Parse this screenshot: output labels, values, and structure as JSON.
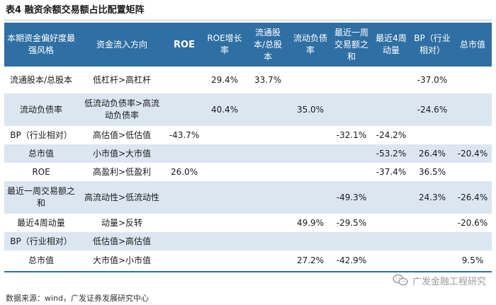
{
  "title": "表4 融资余额交易额占比配置矩阵",
  "columns": [
    "本期资金偏好度最强风格",
    "资金流入方向",
    "ROE",
    "ROE增长率",
    "流通股本/总股本",
    "流动负债率",
    "最近一周交易额之和",
    "最近4周动量",
    "BP（行业相对）",
    "总市值"
  ],
  "rows": [
    {
      "style": "流通股本/总股本",
      "flow": "低杠杆>高杠杆",
      "cells": [
        "",
        "29.4%",
        "33.7%",
        "",
        "",
        "",
        "-37.0%",
        ""
      ]
    },
    {
      "style": "流动负债率",
      "flow": "低流动负债率>高流动负债率",
      "cells": [
        "",
        "40.4%",
        "",
        "35.0%",
        "",
        "",
        "-24.6%",
        ""
      ]
    },
    {
      "style": "BP（行业相对）",
      "flow": "高估值>低估值",
      "cells": [
        "-43.7%",
        "",
        "",
        "",
        "-32.1%",
        "-24.2%",
        "",
        ""
      ]
    },
    {
      "style": "总市值",
      "flow": "小市值>大市值",
      "cells": [
        "",
        "",
        "",
        "",
        "",
        "-53.2%",
        "26.4%",
        "-20.4%"
      ]
    },
    {
      "style": "ROE",
      "flow": "高盈利>低盈利",
      "cells": [
        "26.0%",
        "",
        "",
        "",
        "",
        "-37.4%",
        "36.5%",
        ""
      ]
    },
    {
      "style": "最近一周交易额之和",
      "flow": "高流动性>低流动性",
      "cells": [
        "",
        "",
        "",
        "",
        "-49.3%",
        "",
        "24.3%",
        "-26.4%"
      ]
    },
    {
      "style": "最近4周动量",
      "flow": "动量>反转",
      "cells": [
        "",
        "",
        "",
        "49.9%",
        "-29.5%",
        "",
        "",
        "-20.6%"
      ]
    },
    {
      "style": "BP（行业相对）",
      "flow": "低估值>高估值",
      "cells": [
        "",
        "",
        "",
        "",
        "",
        "",
        "",
        ""
      ]
    },
    {
      "style": "总市值",
      "flow": "大市值>小市值",
      "cells": [
        "",
        "",
        "",
        "27.2%",
        "-42.9%",
        "",
        "",
        "9.5%"
      ]
    }
  ],
  "footer": "数据来源：wind，广发证券发展研究中心",
  "watermark": "广发金融工程研究",
  "colors": {
    "header_bg": "#2f6fa3",
    "row_shade": "#dce6f1"
  }
}
